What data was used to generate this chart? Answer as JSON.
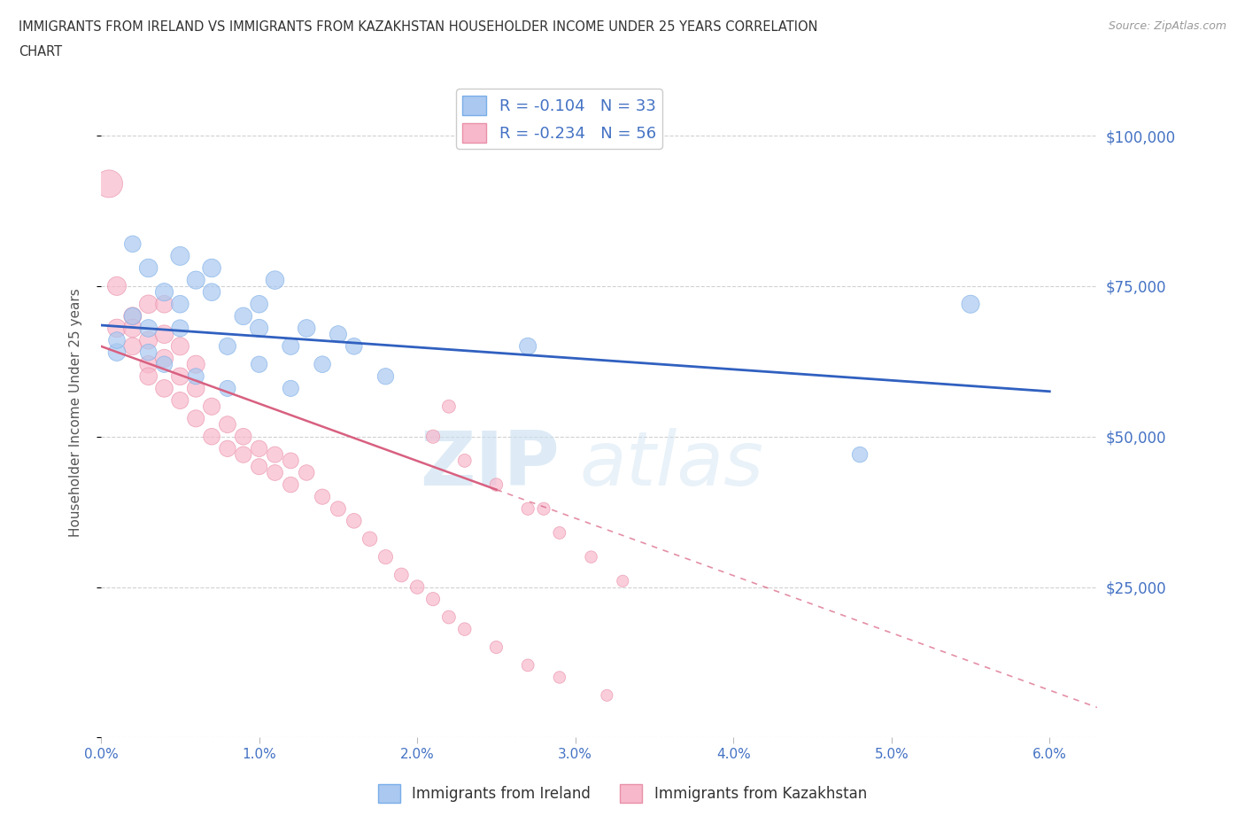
{
  "title_line1": "IMMIGRANTS FROM IRELAND VS IMMIGRANTS FROM KAZAKHSTAN HOUSEHOLDER INCOME UNDER 25 YEARS CORRELATION",
  "title_line2": "CHART",
  "source_text": "Source: ZipAtlas.com",
  "ylabel": "Householder Income Under 25 years",
  "xlim": [
    0.0,
    0.063
  ],
  "ylim": [
    0,
    108000
  ],
  "yticks": [
    0,
    25000,
    50000,
    75000,
    100000
  ],
  "ytick_labels": [
    "",
    "$25,000",
    "$50,000",
    "$75,000",
    "$100,000"
  ],
  "xticks": [
    0.0,
    0.01,
    0.02,
    0.03,
    0.04,
    0.05,
    0.06
  ],
  "xtick_labels": [
    "0.0%",
    "1.0%",
    "2.0%",
    "3.0%",
    "4.0%",
    "5.0%",
    "6.0%"
  ],
  "ireland_color": "#aac8f0",
  "ireland_edge": "#7aaee8",
  "kazakhstan_color": "#f8b8cc",
  "kazakhstan_edge": "#e890a8",
  "ireland_line_color": "#3060c0",
  "kazakhstan_line_color": "#d86080",
  "ireland_R": -0.104,
  "ireland_N": 33,
  "kazakhstan_R": -0.234,
  "kazakhstan_N": 56,
  "legend_ireland_label": "Immigrants from Ireland",
  "legend_kazakhstan_label": "Immigrants from Kazakhstan",
  "watermark_zip": "ZIP",
  "watermark_atlas": "atlas",
  "ireland_x": [
    0.001,
    0.002,
    0.003,
    0.003,
    0.004,
    0.005,
    0.005,
    0.006,
    0.007,
    0.007,
    0.008,
    0.009,
    0.01,
    0.01,
    0.011,
    0.012,
    0.013,
    0.014,
    0.015,
    0.016,
    0.001,
    0.002,
    0.003,
    0.004,
    0.005,
    0.006,
    0.008,
    0.01,
    0.012,
    0.018,
    0.027,
    0.048,
    0.055
  ],
  "ireland_y": [
    64000,
    82000,
    78000,
    68000,
    74000,
    80000,
    72000,
    76000,
    74000,
    78000,
    65000,
    70000,
    68000,
    72000,
    76000,
    65000,
    68000,
    62000,
    67000,
    65000,
    66000,
    70000,
    64000,
    62000,
    68000,
    60000,
    58000,
    62000,
    58000,
    60000,
    65000,
    47000,
    72000
  ],
  "ireland_sizes": [
    200,
    180,
    220,
    200,
    210,
    230,
    200,
    210,
    200,
    220,
    190,
    200,
    210,
    200,
    220,
    190,
    200,
    180,
    190,
    180,
    180,
    190,
    180,
    175,
    190,
    170,
    170,
    175,
    170,
    175,
    190,
    160,
    210
  ],
  "kazakhstan_x": [
    0.0005,
    0.001,
    0.001,
    0.002,
    0.002,
    0.002,
    0.003,
    0.003,
    0.003,
    0.003,
    0.004,
    0.004,
    0.004,
    0.004,
    0.005,
    0.005,
    0.005,
    0.006,
    0.006,
    0.006,
    0.007,
    0.007,
    0.008,
    0.008,
    0.009,
    0.009,
    0.01,
    0.01,
    0.011,
    0.011,
    0.012,
    0.012,
    0.013,
    0.014,
    0.015,
    0.016,
    0.017,
    0.018,
    0.019,
    0.02,
    0.021,
    0.022,
    0.023,
    0.025,
    0.027,
    0.029,
    0.032,
    0.021,
    0.023,
    0.025,
    0.027,
    0.029,
    0.031,
    0.033,
    0.022,
    0.028
  ],
  "kazakhstan_y": [
    92000,
    68000,
    75000,
    65000,
    70000,
    68000,
    62000,
    66000,
    72000,
    60000,
    58000,
    63000,
    67000,
    72000,
    56000,
    60000,
    65000,
    53000,
    58000,
    62000,
    50000,
    55000,
    48000,
    52000,
    47000,
    50000,
    45000,
    48000,
    44000,
    47000,
    42000,
    46000,
    44000,
    40000,
    38000,
    36000,
    33000,
    30000,
    27000,
    25000,
    23000,
    20000,
    18000,
    15000,
    12000,
    10000,
    7000,
    50000,
    46000,
    42000,
    38000,
    34000,
    30000,
    26000,
    55000,
    38000
  ],
  "kazakhstan_sizes": [
    500,
    220,
    230,
    200,
    210,
    220,
    200,
    210,
    220,
    200,
    200,
    210,
    220,
    200,
    190,
    200,
    210,
    190,
    200,
    210,
    180,
    190,
    175,
    185,
    175,
    180,
    170,
    175,
    165,
    170,
    160,
    165,
    160,
    155,
    150,
    145,
    140,
    135,
    130,
    125,
    120,
    115,
    110,
    105,
    100,
    95,
    90,
    120,
    115,
    110,
    105,
    100,
    95,
    90,
    115,
    105
  ]
}
